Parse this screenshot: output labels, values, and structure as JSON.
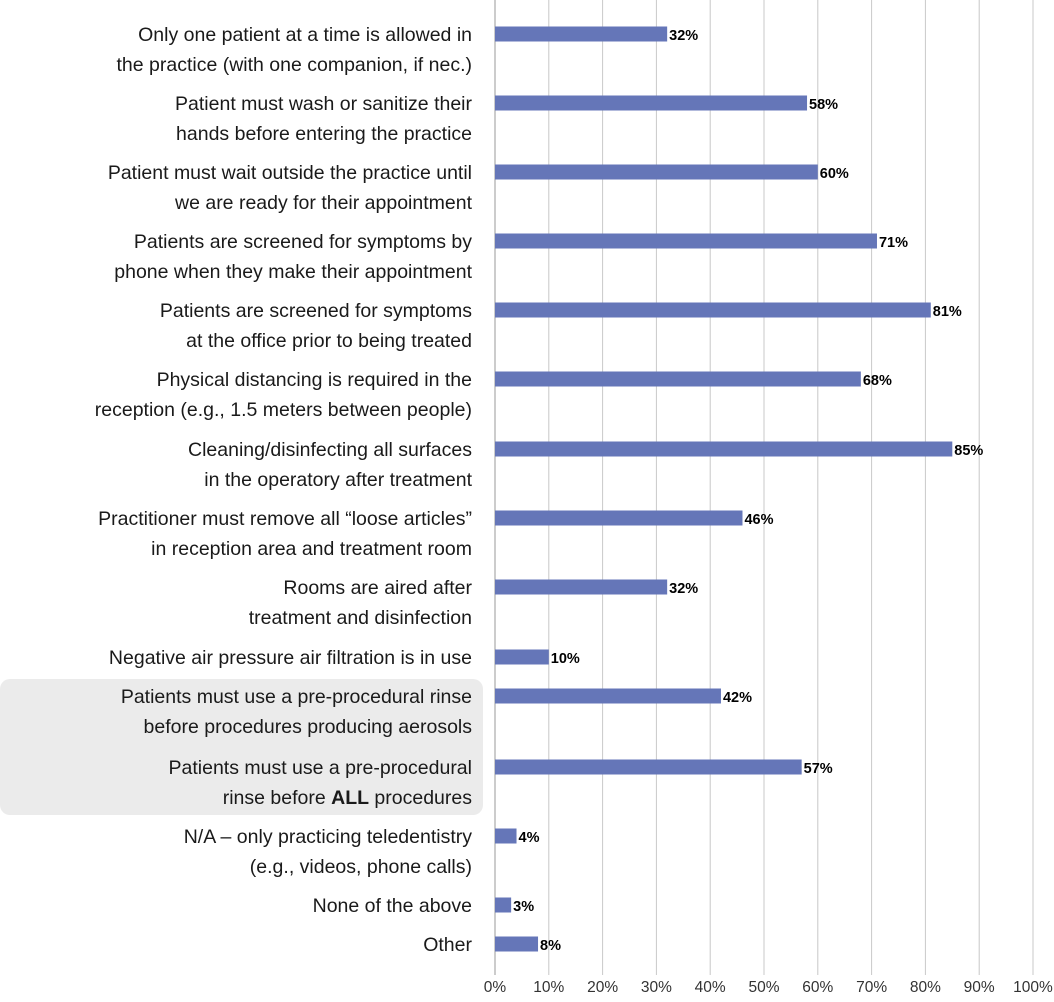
{
  "chart_data": {
    "type": "hbar",
    "categories": [
      [
        "Only one patient at a time is allowed in",
        "the practice (with one companion, if nec.)"
      ],
      [
        "Patient must wash or sanitize their",
        "hands before entering the practice"
      ],
      [
        "Patient must wait outside the practice until",
        "we are ready for their appointment"
      ],
      [
        "Patients are screened for symptoms by",
        "phone when they make their appointment"
      ],
      [
        "Patients are screened for symptoms",
        "at the office prior to being treated"
      ],
      [
        "Physical distancing is required in the",
        "reception (e.g., 1.5 meters between people)"
      ],
      [
        "Cleaning/disinfecting all surfaces",
        "in the operatory after treatment"
      ],
      [
        "Practitioner must remove all “loose articles”",
        "in reception area and treatment room"
      ],
      [
        "Rooms are aired after",
        "treatment and disinfection"
      ],
      [
        "Negative air pressure air filtration is in use"
      ],
      [
        "Patients must use a pre-procedural rinse",
        "before procedures producing aerosols"
      ],
      [
        "Patients must use a pre-procedural",
        [
          {
            "text": "rinse before "
          },
          {
            "text": "ALL",
            "bold": true
          },
          {
            "text": " procedures"
          }
        ]
      ],
      [
        "N/A – only practicing teledentistry",
        "(e.g., videos, phone calls)"
      ],
      [
        "None of the above"
      ],
      [
        "Other"
      ]
    ],
    "highlight": [
      10,
      11
    ],
    "values": [
      32,
      58,
      60,
      71,
      81,
      68,
      85,
      46,
      32,
      10,
      42,
      57,
      4,
      3,
      8
    ],
    "value_labels": [
      "32%",
      "58%",
      "60%",
      "71%",
      "81%",
      "68%",
      "85%",
      "46%",
      "32%",
      "10%",
      "42%",
      "57%",
      "4%",
      "3%",
      "8%"
    ],
    "color": "#6576b8",
    "xlim": [
      0,
      100
    ],
    "xticks": [
      {
        "value": 0,
        "label": "0%"
      },
      {
        "value": 10,
        "label": "10%"
      },
      {
        "value": 20,
        "label": "20%"
      },
      {
        "value": 30,
        "label": "30%"
      },
      {
        "value": 40,
        "label": "40%"
      },
      {
        "value": 50,
        "label": "50%"
      },
      {
        "value": 60,
        "label": "60%"
      },
      {
        "value": 70,
        "label": "70%"
      },
      {
        "value": 80,
        "label": "80%"
      },
      {
        "value": 90,
        "label": "90%"
      },
      {
        "value": 100,
        "label": "100%"
      }
    ],
    "grid": true
  }
}
